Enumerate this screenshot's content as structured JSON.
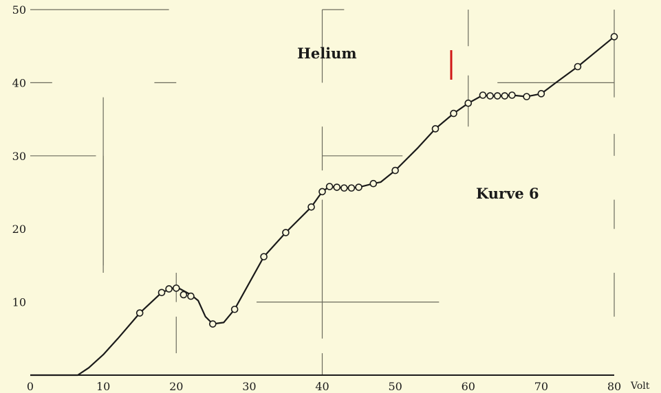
{
  "chart_data": {
    "type": "line",
    "xlim": [
      0,
      80
    ],
    "ylim": [
      0,
      50
    ],
    "x_ticks": [
      "0",
      "10",
      "20",
      "30",
      "40",
      "50",
      "60",
      "70",
      "80"
    ],
    "y_ticks": [
      "10",
      "20",
      "30",
      "40",
      "50"
    ],
    "x_unit": "Volt",
    "grid": "partial",
    "annotations": {
      "title": "Helium",
      "curve_label": "Kurve 6"
    },
    "accent_color": "#d01818",
    "curve": {
      "x": [
        0,
        6.5,
        8,
        10,
        12,
        15,
        18,
        19.5,
        20.5,
        22,
        23,
        24,
        25,
        26.5,
        28,
        32,
        35,
        38.5,
        40,
        41,
        42,
        43,
        44,
        45,
        47,
        48,
        50,
        53,
        55.5,
        58,
        60,
        62,
        63,
        64,
        65,
        66,
        68,
        70,
        72,
        75,
        80
      ],
      "y": [
        0,
        0,
        1,
        2.8,
        5,
        8.5,
        11.3,
        11.9,
        11.8,
        11.0,
        10.2,
        8,
        7,
        7.2,
        9,
        16.2,
        19.5,
        23,
        25.1,
        25.8,
        25.7,
        25.6,
        25.6,
        25.7,
        26.2,
        26.4,
        28,
        31,
        33.7,
        35.8,
        37.2,
        38.3,
        38.2,
        38.2,
        38.2,
        38.3,
        38.1,
        38.5,
        40.0,
        42.2,
        46.3
      ]
    },
    "markers": {
      "x": [
        15,
        18,
        19,
        20,
        21,
        22,
        25,
        28,
        32,
        35,
        38.5,
        40,
        41,
        42,
        43,
        44,
        45,
        47,
        50,
        55.5,
        58,
        60,
        62,
        63,
        64,
        65,
        66,
        68,
        70,
        75,
        80
      ],
      "y": [
        8.5,
        11.3,
        11.8,
        11.9,
        11.0,
        10.8,
        7,
        9,
        16.2,
        19.5,
        23,
        25.1,
        25.8,
        25.7,
        25.6,
        25.6,
        25.7,
        26.2,
        28,
        33.7,
        35.8,
        37.2,
        38.3,
        38.2,
        38.2,
        38.2,
        38.3,
        38.1,
        38.5,
        42.2,
        46.3
      ]
    }
  }
}
